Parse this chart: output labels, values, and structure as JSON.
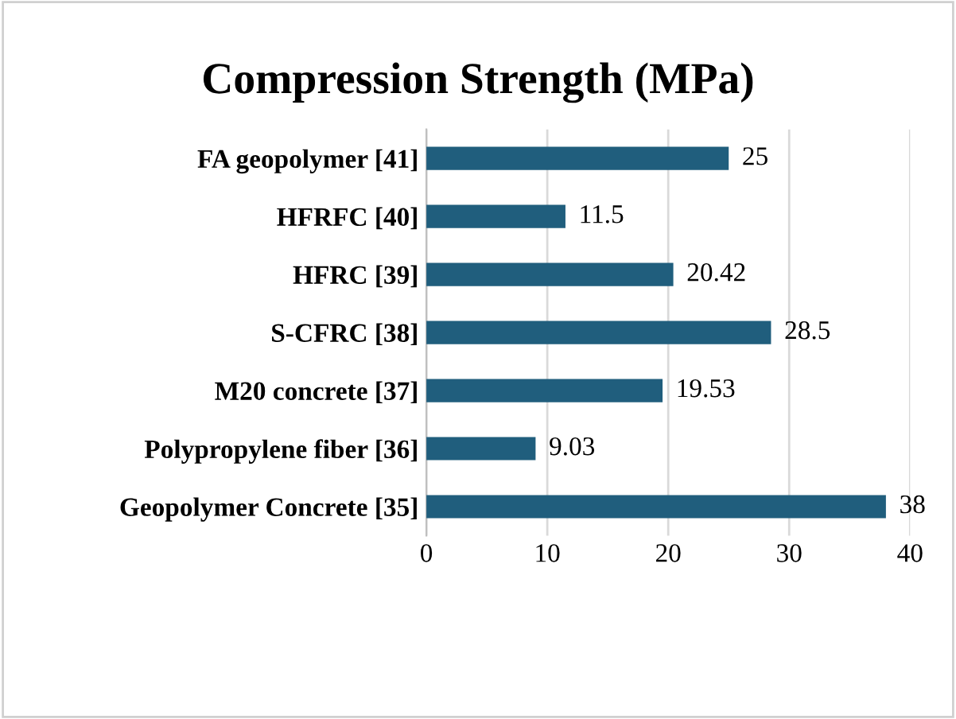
{
  "chart_data": {
    "type": "bar",
    "orientation": "horizontal",
    "title": "Compression Strength (MPa)",
    "categories": [
      "FA geopolymer [41]",
      "HFRFC [40]",
      "HFRC [39]",
      "S-CFRC [38]",
      "M20 concrete [37]",
      "Polypropylene fiber [36]",
      "Geopolymer Concrete [35]"
    ],
    "values": [
      25,
      11.5,
      20.42,
      28.5,
      19.53,
      9.03,
      38
    ],
    "color": "#205e7d",
    "xlim": [
      0,
      40
    ],
    "xticks": [
      0,
      10,
      20,
      30,
      40
    ],
    "grid": "x",
    "data_labels": true
  }
}
